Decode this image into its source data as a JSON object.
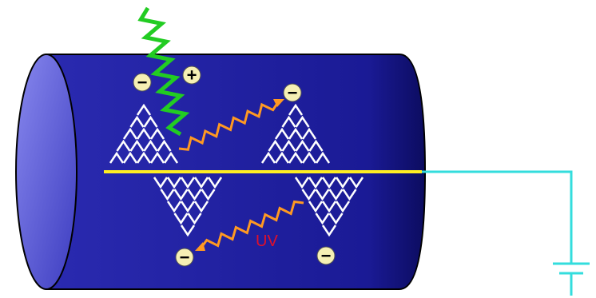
{
  "charges": [
    {
      "label": "−"
    },
    {
      "label": "+"
    },
    {
      "label": "−"
    },
    {
      "label": "−"
    },
    {
      "label": "−"
    }
  ],
  "annotations": {
    "uv": "UV"
  }
}
